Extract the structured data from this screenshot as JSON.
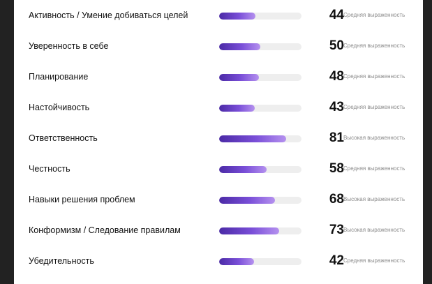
{
  "rows": [
    {
      "label": "Активность / Умение добиваться целей",
      "value": "44",
      "level": "Средняя выраженность",
      "percent": 44
    },
    {
      "label": "Уверенность в себе",
      "value": "50",
      "level": "Средняя выраженность",
      "percent": 50
    },
    {
      "label": "Планирование",
      "value": "48",
      "level": "Средняя выраженность",
      "percent": 48
    },
    {
      "label": "Настойчивость",
      "value": "43",
      "level": "Средняя выраженность",
      "percent": 43
    },
    {
      "label": "Ответственность",
      "value": "81",
      "level": "Высокая выраженность",
      "percent": 81
    },
    {
      "label": "Честность",
      "value": "58",
      "level": "Средняя выраженность",
      "percent": 58
    },
    {
      "label": "Навыки решения проблем",
      "value": "68",
      "level": "Высокая выраженность",
      "percent": 68
    },
    {
      "label": "Конформизм / Следование правилам",
      "value": "73",
      "level": "Высокая выраженность",
      "percent": 73
    },
    {
      "label": "Убедительность",
      "value": "42",
      "level": "Средняя выраженность",
      "percent": 42
    }
  ],
  "colors": {
    "bar_start": "#4b2aa6",
    "bar_end": "#b591ef",
    "track": "#eeeeee"
  }
}
